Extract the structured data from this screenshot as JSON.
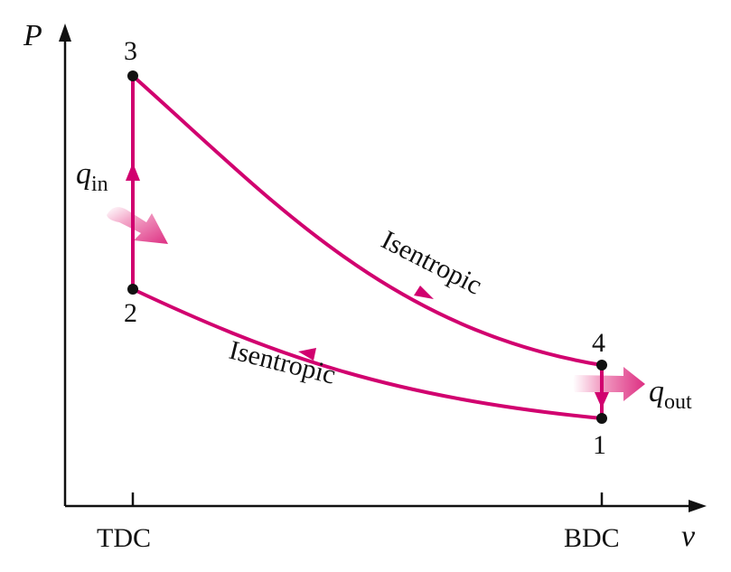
{
  "axes": {
    "y_label": "P",
    "x_label": "v",
    "x_ticks": [
      "TDC",
      "BDC"
    ]
  },
  "states": [
    "1",
    "2",
    "3",
    "4"
  ],
  "processes": {
    "compression_label": "Isentropic",
    "expansion_label": "Isentropic"
  },
  "heat": {
    "in_symbol": "q",
    "in_subscript": "in",
    "out_symbol": "q",
    "out_subscript": "out"
  },
  "colors": {
    "cycle": "#d1006f",
    "axis": "#111111",
    "heat_arrow": "#e0408a"
  }
}
